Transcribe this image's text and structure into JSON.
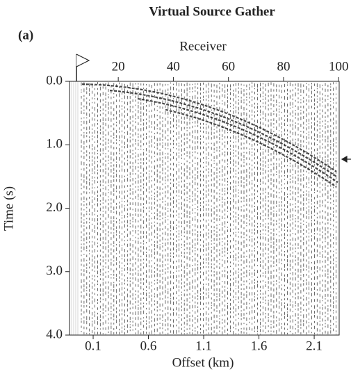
{
  "chart_data": {
    "type": "seismic",
    "title": "Virtual Source Gather",
    "panel_label": "(a)",
    "xlabel": "Offset (km)",
    "x2label": "Receiver",
    "ylabel": "Time (s)",
    "xlim": [
      -0.114,
      2.326
    ],
    "xticks": [
      0.1,
      0.6,
      1.1,
      1.6,
      2.1
    ],
    "x2lim": [
      2.3,
      100.2
    ],
    "x2ticks": [
      20,
      40,
      60,
      80,
      100
    ],
    "ylim": [
      4,
      0
    ],
    "yticks": [
      {
        "value": 0,
        "label": "0.0"
      },
      {
        "value": 1,
        "label": "1.0"
      },
      {
        "value": 2,
        "label": "2.0"
      },
      {
        "value": 3,
        "label": "3.0"
      },
      {
        "value": 4,
        "label": "4.0"
      }
    ]
  }
}
